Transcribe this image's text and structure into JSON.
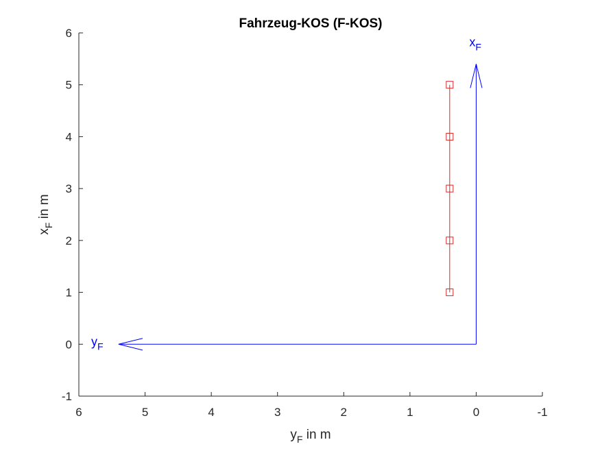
{
  "chart_data": {
    "type": "line",
    "title": "Fahrzeug-KOS (F-KOS)",
    "xlabel": {
      "main": "y",
      "sub": "F",
      "suffix": " in m"
    },
    "ylabel": {
      "main": "x",
      "sub": "F",
      "suffix": " in m"
    },
    "xlim": [
      6,
      -1
    ],
    "ylim": [
      -1,
      6
    ],
    "x_reversed": true,
    "x_ticks": [
      6,
      5,
      4,
      3,
      2,
      1,
      0,
      -1
    ],
    "y_ticks": [
      -1,
      0,
      1,
      2,
      3,
      4,
      5,
      6
    ],
    "grid": false,
    "series": [
      {
        "marker": "square",
        "color": "#d62728",
        "points": [
          {
            "x": 0.4,
            "y": 1
          },
          {
            "x": 0.4,
            "y": 2
          },
          {
            "x": 0.4,
            "y": 3
          },
          {
            "x": 0.4,
            "y": 4
          },
          {
            "x": 0.4,
            "y": 5
          }
        ]
      }
    ],
    "axes_arrows": [
      {
        "label": {
          "main": "x",
          "sub": "F"
        },
        "from": {
          "x": 0,
          "y": 0
        },
        "to": {
          "x": 0,
          "y": 5.4
        },
        "color": "#0000ff"
      },
      {
        "label": {
          "main": "y",
          "sub": "F"
        },
        "from": {
          "x": 0,
          "y": 0
        },
        "to": {
          "x": 5.4,
          "y": 0
        },
        "color": "#0000ff"
      }
    ]
  }
}
